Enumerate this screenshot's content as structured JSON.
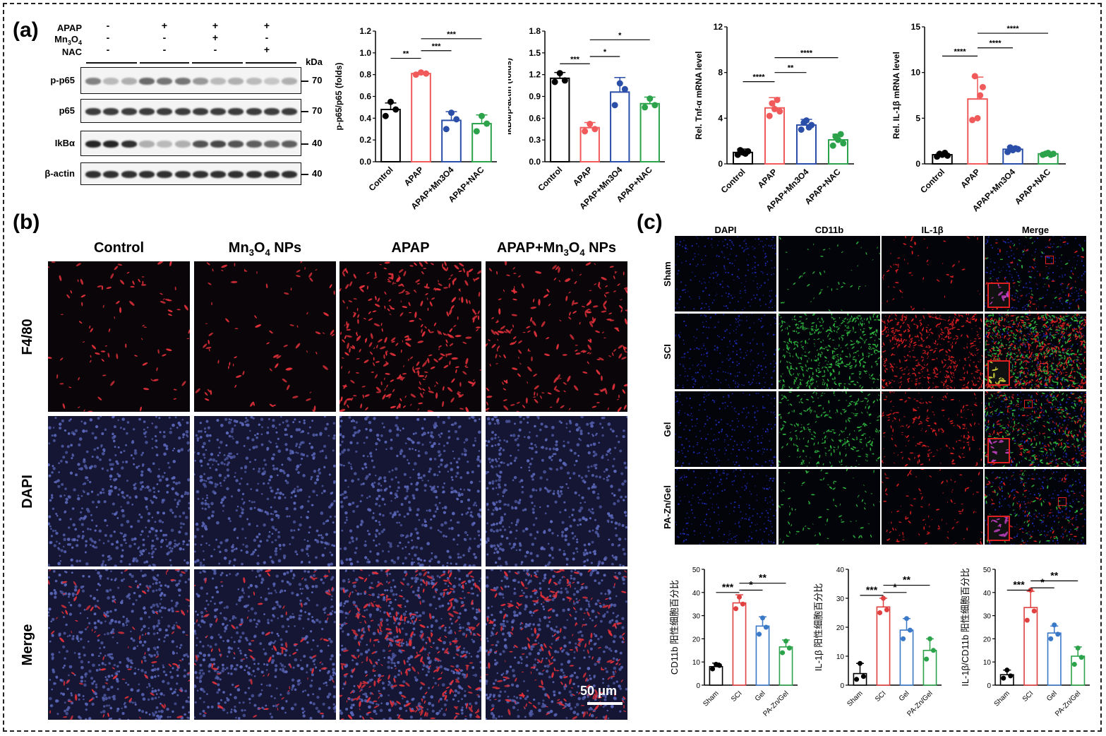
{
  "panels": {
    "a": "(a)",
    "b": "(b)",
    "c": "(c)"
  },
  "western_blot": {
    "treatments": [
      {
        "name": "APAP",
        "signs": [
          "-",
          "+",
          "+",
          "+"
        ]
      },
      {
        "name": "Mn3O4",
        "signs": [
          "-",
          "-",
          "+",
          "-"
        ]
      },
      {
        "name": "NAC",
        "signs": [
          "-",
          "-",
          "-",
          "+"
        ]
      }
    ],
    "kda_label": "kDa",
    "rows": [
      {
        "label": "p-p65",
        "kda": "70",
        "intensity": [
          0.55,
          0.3,
          0.35,
          0.65,
          0.6,
          0.6,
          0.45,
          0.3,
          0.35,
          0.3,
          0.25,
          0.35
        ]
      },
      {
        "label": "p65",
        "kda": "70",
        "intensity": [
          0.85,
          0.85,
          0.85,
          0.85,
          0.85,
          0.85,
          0.85,
          0.85,
          0.85,
          0.85,
          0.85,
          0.85
        ]
      },
      {
        "label": "IkBα",
        "kda": "40",
        "intensity": [
          0.95,
          0.95,
          0.9,
          0.35,
          0.3,
          0.35,
          0.75,
          0.8,
          0.75,
          0.7,
          0.65,
          0.7
        ]
      },
      {
        "label": "β-actin",
        "kda": "40",
        "intensity": [
          0.9,
          0.9,
          0.9,
          0.9,
          0.9,
          0.9,
          0.9,
          0.9,
          0.9,
          0.9,
          0.9,
          0.9
        ]
      }
    ]
  },
  "chart_data": [
    {
      "type": "bar",
      "id": "pp65",
      "categories": [
        "Control",
        "APAP",
        "APAP+Mn3O4",
        "APAP+NAC"
      ],
      "values": [
        0.48,
        0.81,
        0.38,
        0.35
      ],
      "errors": [
        0.06,
        0.01,
        0.08,
        0.08
      ],
      "points": [
        [
          0.42,
          0.55,
          0.48
        ],
        [
          0.8,
          0.82,
          0.81
        ],
        [
          0.3,
          0.45,
          0.39
        ],
        [
          0.28,
          0.42,
          0.35
        ]
      ],
      "ylabel": "p-p65/p65 (folds)",
      "ylim": [
        0,
        1.2
      ],
      "yticks": [
        "0.0",
        "0.2",
        "0.4",
        "0.6",
        "0.8",
        "1.0",
        "1.2"
      ],
      "annotations": [
        {
          "from": 0,
          "to": 1,
          "y": 0.95,
          "label": "**"
        },
        {
          "from": 1,
          "to": 2,
          "y": 1.02,
          "label": "***"
        },
        {
          "from": 1,
          "to": 3,
          "y": 1.13,
          "label": "***"
        }
      ]
    },
    {
      "type": "bar",
      "id": "ikba",
      "categories": [
        "Control",
        "APAP",
        "APAP+Mn3O4",
        "APAP+NAC"
      ],
      "values": [
        1.15,
        0.47,
        0.96,
        0.8
      ],
      "errors": [
        0.08,
        0.07,
        0.2,
        0.09
      ],
      "points": [
        [
          1.1,
          1.22,
          1.12
        ],
        [
          0.42,
          0.52,
          0.45
        ],
        [
          0.78,
          1.08,
          1.0
        ],
        [
          0.75,
          0.87,
          0.78
        ]
      ],
      "ylabel": "IkBα/β-actin (folds)",
      "ylim": [
        0,
        1.8
      ],
      "yticks": [
        "0.0",
        "0.3",
        "0.6",
        "0.9",
        "1.2",
        "1.5",
        "1.8"
      ],
      "annotations": [
        {
          "from": 0,
          "to": 1,
          "y": 1.35,
          "label": "***"
        },
        {
          "from": 1,
          "to": 2,
          "y": 1.45,
          "label": "*"
        },
        {
          "from": 1,
          "to": 3,
          "y": 1.68,
          "label": "*"
        }
      ]
    },
    {
      "type": "bar",
      "id": "tnfa",
      "categories": [
        "Control",
        "APAP",
        "APAP+Mn3O4",
        "APAP+NAC"
      ],
      "values": [
        1.0,
        4.9,
        3.4,
        2.1
      ],
      "errors": [
        0.3,
        0.9,
        0.5,
        0.5
      ],
      "points": [
        [
          0.8,
          1.2,
          1.0,
          0.9,
          1.1
        ],
        [
          4.2,
          5.3,
          4.8,
          5.6,
          4.6
        ],
        [
          3.0,
          3.6,
          3.8,
          3.2,
          3.4
        ],
        [
          1.6,
          2.4,
          2.1,
          2.6,
          1.8
        ]
      ],
      "ylabel": "Rel. Tnf-α mRNA level",
      "ylim": [
        0,
        12
      ],
      "yticks": [
        "0",
        "4",
        "8",
        "12"
      ],
      "annotations": [
        {
          "from": 0,
          "to": 1,
          "y": 7.2,
          "label": "****"
        },
        {
          "from": 1,
          "to": 2,
          "y": 8.0,
          "label": "**"
        },
        {
          "from": 1,
          "to": 3,
          "y": 9.3,
          "label": "****"
        }
      ]
    },
    {
      "type": "bar",
      "id": "il1b",
      "categories": [
        "Control",
        "APAP",
        "APAP+Mn3O4",
        "APAP+NAC"
      ],
      "values": [
        1.0,
        7.1,
        1.6,
        1.1
      ],
      "errors": [
        0.2,
        2.4,
        0.3,
        0.1
      ],
      "points": [
        [
          0.8,
          1.1,
          1.0,
          1.2,
          0.9
        ],
        [
          4.8,
          9.6,
          5.0,
          7.5,
          8.4
        ],
        [
          1.3,
          1.8,
          1.5,
          1.7,
          1.6
        ],
        [
          1.0,
          1.1,
          1.2,
          1.0,
          1.1
        ]
      ],
      "ylabel": "Rel. IL-1β mRNA level",
      "ylim": [
        0,
        15
      ],
      "yticks": [
        "0",
        "5",
        "10",
        "15"
      ],
      "annotations": [
        {
          "from": 0,
          "to": 1,
          "y": 11.8,
          "label": "****"
        },
        {
          "from": 1,
          "to": 2,
          "y": 12.7,
          "label": "****"
        },
        {
          "from": 1,
          "to": 3,
          "y": 14.3,
          "label": "****"
        }
      ]
    },
    {
      "type": "bar",
      "id": "cd11b",
      "categories": [
        "Sham",
        "SCI",
        "Gel",
        "PA-Zn/Gel"
      ],
      "values": [
        8,
        35.5,
        25.5,
        16.5
      ],
      "errors": [
        1.5,
        3.5,
        4,
        3
      ],
      "points": [
        [
          7,
          9,
          8.5
        ],
        [
          33,
          38,
          35
        ],
        [
          22,
          29,
          25
        ],
        [
          14,
          19,
          16
        ]
      ],
      "ylabel": "CD11b 阳性细胞百分比",
      "ylim": [
        0,
        50
      ],
      "yticks": [
        "0",
        "10",
        "20",
        "30",
        "40",
        "50"
      ],
      "annotations": [
        {
          "from": 0,
          "to": 1,
          "y": 40,
          "label": "***"
        },
        {
          "from": 1,
          "to": 2,
          "y": 41,
          "label": "*"
        },
        {
          "from": 1,
          "to": 3,
          "y": 44,
          "label": "**"
        }
      ]
    },
    {
      "type": "bar",
      "id": "il1b-pct",
      "categories": [
        "Sham",
        "SCI",
        "Gel",
        "PA-Zn/Gel"
      ],
      "values": [
        4,
        27,
        19,
        12
      ],
      "errors": [
        3.5,
        3,
        4,
        4
      ],
      "points": [
        [
          2,
          7.5,
          3
        ],
        [
          25,
          30,
          26
        ],
        [
          16,
          23,
          19
        ],
        [
          9,
          16,
          12
        ]
      ],
      "ylabel": "IL-1β 阳性细胞百分比",
      "ylim": [
        0,
        40
      ],
      "yticks": [
        "0",
        "10",
        "20",
        "30",
        "40"
      ],
      "annotations": [
        {
          "from": 0,
          "to": 1,
          "y": 31,
          "label": "***"
        },
        {
          "from": 1,
          "to": 2,
          "y": 32,
          "label": "*"
        },
        {
          "from": 1,
          "to": 3,
          "y": 34.5,
          "label": "**"
        }
      ]
    },
    {
      "type": "bar",
      "id": "il1b-cd11b",
      "categories": [
        "Sham",
        "SCI",
        "Gel",
        "PA-Zn/Gel"
      ],
      "values": [
        4.5,
        33.5,
        22.5,
        12.5
      ],
      "errors": [
        2,
        7,
        3,
        4
      ],
      "points": [
        [
          3,
          6.5,
          4
        ],
        [
          28,
          41,
          32
        ],
        [
          20,
          26,
          22
        ],
        [
          9,
          16,
          12
        ]
      ],
      "ylabel": "IL-1β/CD11b 阳性细胞百分比",
      "ylim": [
        0,
        50
      ],
      "yticks": [
        "0",
        "10",
        "20",
        "30",
        "40",
        "50"
      ],
      "annotations": [
        {
          "from": 0,
          "to": 1,
          "y": 41,
          "label": "***"
        },
        {
          "from": 1,
          "to": 2,
          "y": 42,
          "label": "*"
        },
        {
          "from": 1,
          "to": 3,
          "y": 45,
          "label": "**"
        }
      ]
    }
  ],
  "series_colors": {
    "a": [
      "#000000",
      "#f05a5a",
      "#2b4fa8",
      "#2ca24a"
    ],
    "c": [
      "#000000",
      "#e04040",
      "#3a78c8",
      "#2ca24a"
    ]
  },
  "micro_b": {
    "columns": [
      "Control",
      "Mn3O4 NPs",
      "APAP",
      "APAP+Mn3O4 NPs"
    ],
    "rows": [
      "F4/80",
      "DAPI",
      "Merge"
    ],
    "scale_bar": "50 μm",
    "red_density": [
      0.15,
      0.12,
      0.85,
      0.55
    ]
  },
  "micro_c": {
    "columns": [
      "DAPI",
      "CD11b",
      "IL-1β",
      "Merge"
    ],
    "rows": [
      "Sham",
      "SCI",
      "Gel",
      "PA-Zn/Gel"
    ],
    "green_density": [
      0.05,
      0.9,
      0.5,
      0.12
    ],
    "red_density": [
      0.08,
      0.95,
      0.35,
      0.15
    ]
  }
}
